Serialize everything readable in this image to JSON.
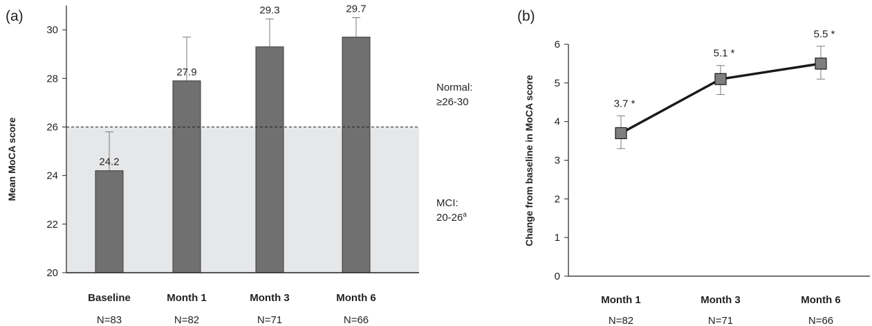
{
  "colors": {
    "bar": "#707070",
    "bar_stroke": "#3a3a3a",
    "error_bar": "#7a7a7a",
    "mci_band": "#e6e7e8",
    "axis": "#231f20",
    "marker": "#7f7f7f"
  },
  "chart_data": [
    {
      "panel_label": "(a)",
      "type": "bar",
      "categories": [
        "Baseline",
        "Month 1",
        "Month 3",
        "Month 6"
      ],
      "n_labels": [
        "N=83",
        "N=82",
        "N=71",
        "N=66"
      ],
      "values": [
        24.2,
        27.9,
        29.3,
        29.7
      ],
      "value_labels": [
        "24.2",
        "27.9",
        "29.3",
        "29.7"
      ],
      "error_upper": [
        25.8,
        29.7,
        30.45,
        30.5
      ],
      "ylabel": "Mean MoCA score",
      "ylim": [
        20,
        31
      ],
      "yticks": [
        20,
        22,
        24,
        26,
        28,
        30
      ],
      "reference_line": 26,
      "shaded_band": [
        20,
        26
      ],
      "annotations": {
        "normal_line1": "Normal:",
        "normal_line2": "≥26-30",
        "mci_line1": "MCI:",
        "mci_line2": "20-26",
        "mci_sup": "a"
      }
    },
    {
      "panel_label": "(b)",
      "type": "line",
      "categories": [
        "Month 1",
        "Month 3",
        "Month 6"
      ],
      "n_labels": [
        "N=82",
        "N=71",
        "N=66"
      ],
      "values": [
        3.7,
        5.1,
        5.5
      ],
      "value_labels": [
        "3.7 *",
        "5.1 *",
        "5.5 *"
      ],
      "error_low": [
        3.3,
        4.7,
        5.1
      ],
      "error_high": [
        4.15,
        5.45,
        5.95
      ],
      "ylabel": "Change from baseline in MoCA score",
      "ylim": [
        0,
        6
      ],
      "yticks": [
        0,
        1,
        2,
        3,
        4,
        5,
        6
      ]
    }
  ]
}
